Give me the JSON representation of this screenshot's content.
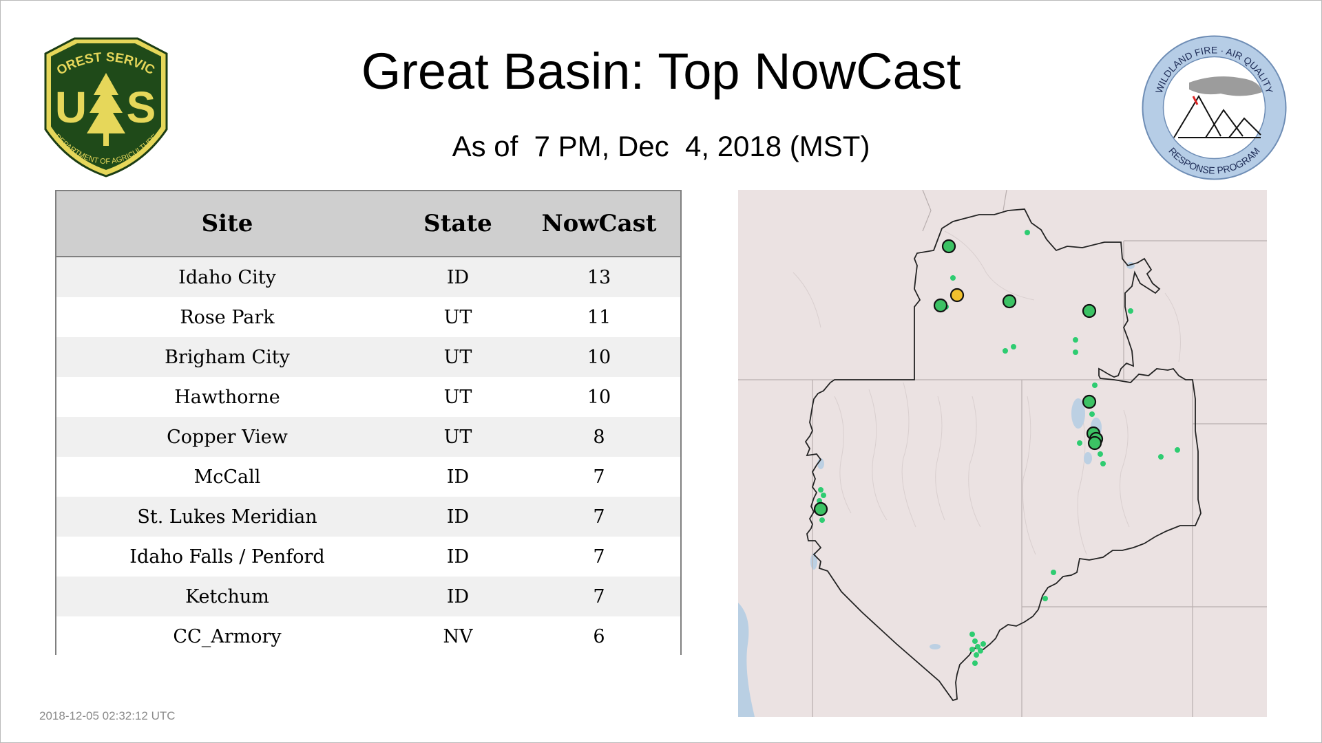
{
  "header": {
    "title": "Great Basin: Top NowCast",
    "subtitle": "As of  7 PM, Dec  4, 2018 (MST)"
  },
  "logo_left": {
    "top_text": "FOREST SERVICE",
    "letters_u": "U",
    "letters_s": "S",
    "bottom_text": "DEPARTMENT OF AGRICULTURE",
    "icon": "usfs-shield-logo"
  },
  "logo_right": {
    "ring_top_text": "WILDLAND FIRE · AIR QUALITY",
    "ring_bottom_text": "RESPONSE PROGRAM",
    "icon": "wfaqrp-seal-logo"
  },
  "table": {
    "columns": [
      "Site",
      "State",
      "NowCast"
    ],
    "rows": [
      {
        "site": "Idaho City",
        "state": "ID",
        "nowcast": "13"
      },
      {
        "site": "Rose Park",
        "state": "UT",
        "nowcast": "11"
      },
      {
        "site": "Brigham City",
        "state": "UT",
        "nowcast": "10"
      },
      {
        "site": "Hawthorne",
        "state": "UT",
        "nowcast": "10"
      },
      {
        "site": "Copper View",
        "state": "UT",
        "nowcast": "8"
      },
      {
        "site": "McCall",
        "state": "ID",
        "nowcast": "7"
      },
      {
        "site": "St. Lukes Meridian",
        "state": "ID",
        "nowcast": "7"
      },
      {
        "site": "Idaho Falls / Penford",
        "state": "ID",
        "nowcast": "7"
      },
      {
        "site": "Ketchum",
        "state": "ID",
        "nowcast": "7"
      },
      {
        "site": "CC_Armory",
        "state": "NV",
        "nowcast": "6"
      }
    ]
  },
  "map": {
    "icon": "great-basin-relief-map",
    "colors": {
      "good": "#3cc264",
      "moderate": "#f2c12e",
      "monitor_dot": "#2ecc71",
      "background": "#e9dfdf",
      "water": "#b9cfe3"
    }
  },
  "footer": {
    "timestamp": "2018-12-05 02:32:12 UTC"
  }
}
